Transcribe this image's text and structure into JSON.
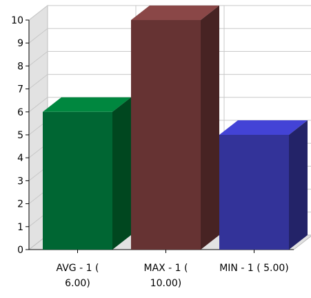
{
  "chart_data": {
    "type": "bar",
    "style": "3d",
    "categories": [
      [
        "AVG - 1 (",
        "6.00)"
      ],
      [
        "MAX - 1 (",
        "10.00)"
      ],
      [
        "MIN - 1 ( 5.00)"
      ]
    ],
    "values": [
      6,
      10,
      5
    ],
    "colors": {
      "front": [
        "#006633",
        "#663333",
        "#333399"
      ],
      "top": [
        "#00873F",
        "#8A4747",
        "#4343D6"
      ],
      "side": [
        "#00471F",
        "#472323",
        "#232368"
      ]
    },
    "ylim": [
      0,
      10
    ],
    "yticks": [
      "0",
      "1",
      "2",
      "3",
      "4",
      "5",
      "6",
      "7",
      "8",
      "9",
      "10"
    ],
    "grid": true,
    "legend": "none",
    "title": "",
    "xlabel": "",
    "ylabel": ""
  }
}
